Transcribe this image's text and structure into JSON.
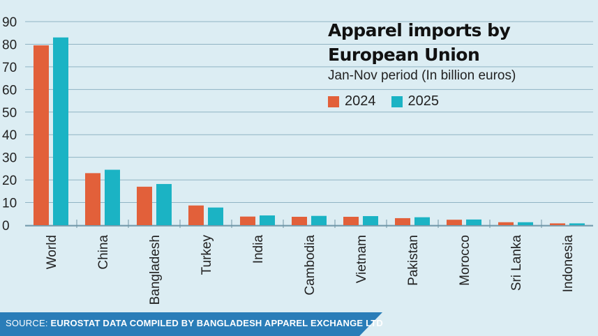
{
  "colors": {
    "background": "#dcedf3",
    "grid": "#8fb3c3",
    "series_2024": "#e2603a",
    "series_2025": "#1bb3c4",
    "source_band": "#2a7db8"
  },
  "chart_data": {
    "type": "bar",
    "title": "Apparel imports by European Union",
    "subtitle": "Jan-Nov period (In billion euros)",
    "categories": [
      "World",
      "China",
      "Bangladesh",
      "Turkey",
      "India",
      "Cambodia",
      "Vietnam",
      "Pakistan",
      "Morocco",
      "Sri Lanka",
      "Indonesia"
    ],
    "series": [
      {
        "name": "2024",
        "color": "#e2603a",
        "values": [
          79.5,
          23,
          17,
          8.7,
          3.8,
          3.7,
          3.7,
          3.1,
          2.4,
          1.3,
          0.8
        ]
      },
      {
        "name": "2025",
        "color": "#1bb3c4",
        "values": [
          83,
          24.5,
          18.2,
          7.8,
          4.3,
          4.1,
          4.0,
          3.5,
          2.5,
          1.3,
          0.8
        ]
      }
    ],
    "yticks": [
      0,
      10,
      20,
      30,
      40,
      50,
      60,
      70,
      80,
      90
    ],
    "ylim": [
      0,
      90
    ],
    "xlabel": "",
    "ylabel": "",
    "grid": true,
    "legend_position": "top-right"
  },
  "source": {
    "prefix": "SOURCE: ",
    "text": "EUROSTAT DATA COMPILED BY BANGLADESH APPAREL EXCHANGE LTD"
  }
}
